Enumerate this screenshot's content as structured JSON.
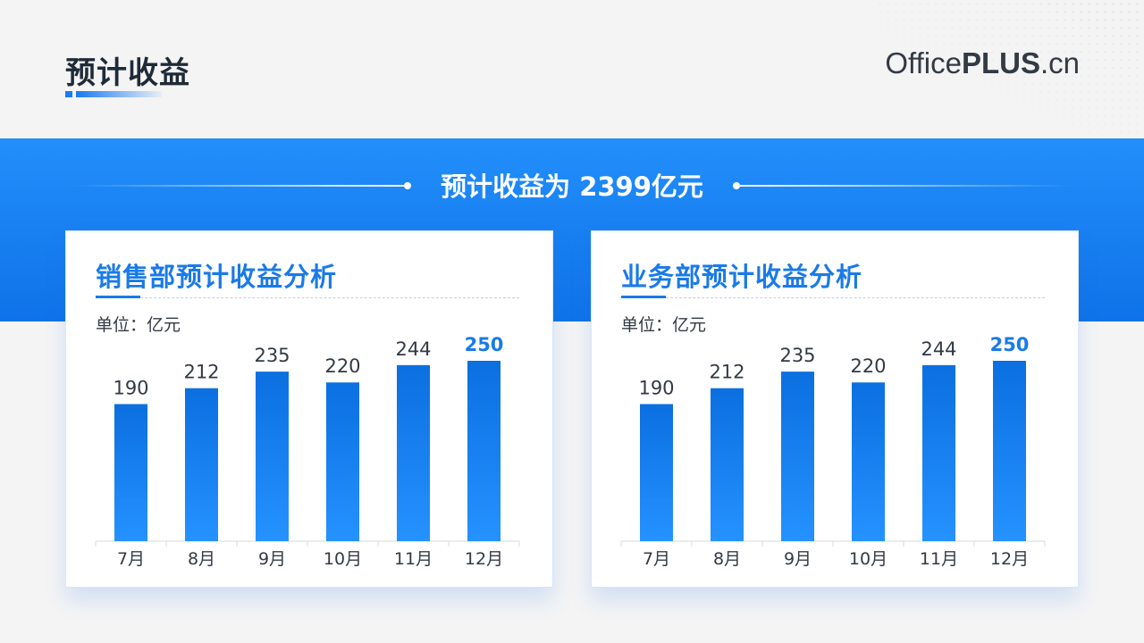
{
  "header": {
    "title": "预计收益",
    "brand": {
      "part1": "Office",
      "part2": "PLUS",
      "part3": ".cn"
    }
  },
  "banner": {
    "text": "预计收益为 2399亿元"
  },
  "colors": {
    "accent": "#1a7ae8",
    "band": "#1f88f6",
    "bar_top": "#0b6fe0",
    "bar_bottom": "#2592ff"
  },
  "chart_data": [
    {
      "type": "bar",
      "title": "销售部预计收益分析",
      "unit_label": "单位：亿元",
      "categories": [
        "7月",
        "8月",
        "9月",
        "10月",
        "11月",
        "12月"
      ],
      "values": [
        190,
        212,
        235,
        220,
        244,
        250
      ],
      "highlight_index": 5,
      "ylim": [
        0,
        250
      ]
    },
    {
      "type": "bar",
      "title": "业务部预计收益分析",
      "unit_label": "单位：亿元",
      "categories": [
        "7月",
        "8月",
        "9月",
        "10月",
        "11月",
        "12月"
      ],
      "values": [
        190,
        212,
        235,
        220,
        244,
        250
      ],
      "highlight_index": 5,
      "ylim": [
        0,
        250
      ]
    }
  ]
}
